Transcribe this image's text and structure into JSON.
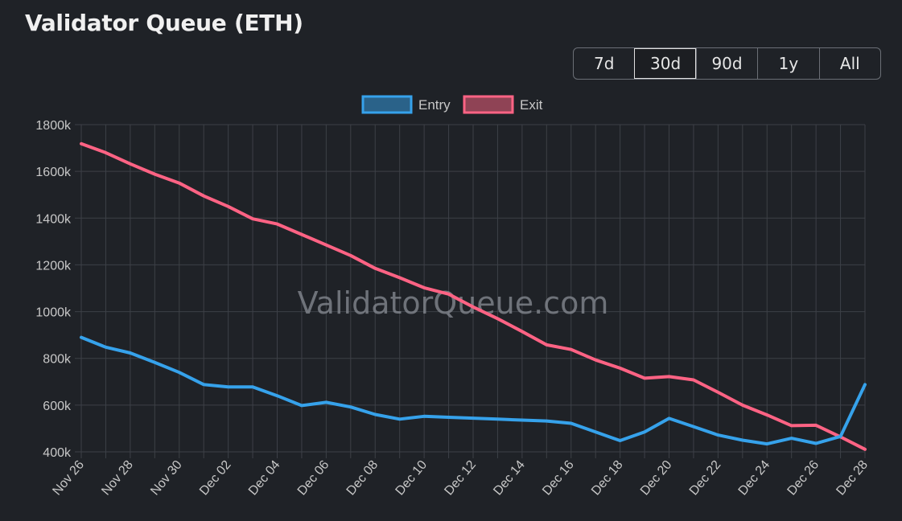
{
  "page": {
    "title": "Validator Queue (ETH)",
    "watermark": "ValidatorQueue.com"
  },
  "range": {
    "options": [
      "7d",
      "30d",
      "90d",
      "1y",
      "All"
    ],
    "selected": "30d"
  },
  "colors": {
    "entry": "#36a2eb",
    "exit": "#ff6384",
    "grid": "#3d4047",
    "text": "#c8c8c8"
  },
  "chart_data": {
    "type": "line",
    "x": [
      "Nov 26",
      "Nov 27",
      "Nov 28",
      "Nov 29",
      "Nov 30",
      "Dec 01",
      "Dec 02",
      "Dec 03",
      "Dec 04",
      "Dec 05",
      "Dec 06",
      "Dec 07",
      "Dec 08",
      "Dec 09",
      "Dec 10",
      "Dec 11",
      "Dec 12",
      "Dec 13",
      "Dec 14",
      "Dec 15",
      "Dec 16",
      "Dec 17",
      "Dec 18",
      "Dec 19",
      "Dec 20",
      "Dec 21",
      "Dec 22",
      "Dec 23",
      "Dec 24",
      "Dec 25",
      "Dec 26",
      "Dec 27",
      "Dec 28"
    ],
    "x_tick_labels": [
      "Nov 26",
      "Nov 28",
      "Nov 30",
      "Dec 02",
      "Dec 04",
      "Dec 06",
      "Dec 08",
      "Dec 10",
      "Dec 12",
      "Dec 14",
      "Dec 16",
      "Dec 18",
      "Dec 20",
      "Dec 22",
      "Dec 24",
      "Dec 26",
      "Dec 28"
    ],
    "series": [
      {
        "name": "Entry",
        "values": [
          890,
          848,
          823,
          783,
          740,
          688,
          678,
          678,
          640,
          598,
          612,
          592,
          560,
          540,
          552,
          548,
          544,
          540,
          536,
          532,
          522,
          485,
          448,
          485,
          543,
          508,
          472,
          450,
          434,
          458,
          436,
          466,
          688
        ]
      },
      {
        "name": "Exit",
        "values": [
          1718,
          1680,
          1632,
          1588,
          1550,
          1495,
          1450,
          1397,
          1375,
          1330,
          1285,
          1240,
          1185,
          1145,
          1102,
          1075,
          1020,
          970,
          915,
          858,
          838,
          793,
          758,
          715,
          722,
          708,
          655,
          600,
          558,
          512,
          514,
          464,
          411
        ]
      }
    ],
    "ylim": [
      400,
      1800
    ],
    "y_ticks": [
      400,
      600,
      800,
      1000,
      1200,
      1400,
      1600,
      1800
    ],
    "y_tick_suffix": "k",
    "legend": "top-center",
    "grid": true
  }
}
